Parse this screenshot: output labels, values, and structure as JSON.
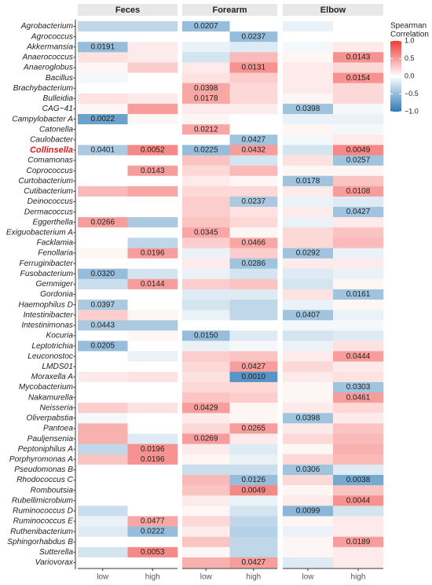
{
  "chart_data": {
    "type": "heatmap",
    "panels": [
      "Feces",
      "Forearm",
      "Elbow"
    ],
    "columns": [
      "low",
      "high"
    ],
    "rows": [
      "Agrobacterium",
      "Agrococcus",
      "Akkermansia",
      "Anaerococcus",
      "Anaeroglobus",
      "Bacillus",
      "Brachybacterium",
      "Bulleidia",
      "CAG−41",
      "Campylobacter A",
      "Catonella",
      "Caulobacter",
      "Collinsella",
      "Comamonas",
      "Coprococcus",
      "Curtobacterium",
      "Cutibacterium",
      "Deinococcus",
      "Dermacoccus",
      "Eggerthella",
      "Exiguobacterium A",
      "Facklamia",
      "Fenollaria",
      "Ferruginibacter",
      "Fusobacterium",
      "Gemmiger",
      "Gordonia",
      "Haemophilus D",
      "Intestinibacter",
      "Intestinimonas",
      "Kocuria",
      "Leptotrichia",
      "Leuconostoc",
      "LMDS01",
      "Moraxella A",
      "Mycobacterium",
      "Nakamurella",
      "Neisseria",
      "Oliverpabstia",
      "Pantoea",
      "Pauljensenia",
      "Peptoniphilus A",
      "Porphyromonas A",
      "Pseudomonas B",
      "Rhodococcus C",
      "Romboutsia",
      "Rubellimicrobium",
      "Ruminococcus D",
      "Ruminococcus E",
      "Ruthenibacterium",
      "Sphingorhabdus B",
      "Sutterella",
      "Variovorax"
    ],
    "highlight_row": 12,
    "highlight_color": "#e41a1c",
    "values": [
      [
        [
          -0.3,
          -0.3
        ],
        [
          0,
          0
        ],
        [
          -0.5,
          0.1
        ],
        [
          0.15,
          0.1
        ],
        [
          0.05,
          0.25
        ],
        [
          -0.05,
          0
        ],
        [
          0,
          0
        ],
        [
          0.15,
          0.1
        ],
        [
          0.05,
          0.5
        ],
        [
          -0.7,
          0.05
        ],
        [
          0,
          0
        ],
        [
          0,
          0
        ],
        [
          -0.4,
          0.6
        ],
        [
          0,
          0
        ],
        [
          0,
          0.5
        ],
        [
          0,
          0
        ],
        [
          0.35,
          0.45
        ],
        [
          0,
          0
        ],
        [
          0,
          0
        ],
        [
          0.5,
          -0.4
        ],
        [
          0,
          0
        ],
        [
          0,
          -0.3
        ],
        [
          0.05,
          0.5
        ],
        [
          0,
          0
        ],
        [
          -0.5,
          -0.2
        ],
        [
          -0.25,
          0.5
        ],
        [
          0,
          0
        ],
        [
          -0.4,
          0
        ],
        [
          0.25,
          0.05
        ],
        [
          -0.4,
          -0.4
        ],
        [
          0,
          0.05
        ],
        [
          -0.5,
          0
        ],
        [
          0,
          -0.1
        ],
        [
          0,
          0
        ],
        [
          0.1,
          0.15
        ],
        [
          0,
          0
        ],
        [
          0,
          0
        ],
        [
          0.25,
          0.15
        ],
        [
          -0.05,
          0
        ],
        [
          0.4,
          0
        ],
        [
          0.4,
          -0.15
        ],
        [
          -0.3,
          0.55
        ],
        [
          0.3,
          0.55
        ],
        [
          0,
          0
        ],
        [
          0,
          0
        ],
        [
          0,
          0
        ],
        [
          0,
          0
        ],
        [
          -0.25,
          0
        ],
        [
          -0.1,
          0.45
        ],
        [
          -0.15,
          -0.5
        ],
        [
          0,
          0
        ],
        [
          -0.2,
          0.6
        ],
        [
          0,
          0
        ]
      ],
      [
        [
          -0.5,
          0
        ],
        [
          0,
          -0.5
        ],
        [
          -0.1,
          -0.15
        ],
        [
          -0.2,
          0.35
        ],
        [
          0.1,
          0.55
        ],
        [
          0.15,
          0.25
        ],
        [
          0.45,
          0.2
        ],
        [
          0.45,
          0.2
        ],
        [
          0.1,
          0.1
        ],
        [
          0.05,
          0
        ],
        [
          0.45,
          0
        ],
        [
          0,
          -0.45
        ],
        [
          -0.5,
          0.5
        ],
        [
          0.3,
          -0.2
        ],
        [
          0.2,
          0.35
        ],
        [
          0.1,
          0.05
        ],
        [
          0.2,
          0.2
        ],
        [
          0.25,
          -0.4
        ],
        [
          0.25,
          0.15
        ],
        [
          0.3,
          0.2
        ],
        [
          0.45,
          0.05
        ],
        [
          0.25,
          0.45
        ],
        [
          -0.1,
          0.25
        ],
        [
          0.1,
          -0.45
        ],
        [
          -0.1,
          -0.2
        ],
        [
          0.25,
          0.3
        ],
        [
          -0.15,
          -0.15
        ],
        [
          -0.2,
          -0.3
        ],
        [
          -0.1,
          -0.3
        ],
        [
          0,
          0
        ],
        [
          -0.5,
          -0.15
        ],
        [
          -0.1,
          -0.05
        ],
        [
          0.25,
          0.3
        ],
        [
          0.2,
          0.5
        ],
        [
          0.15,
          -0.8
        ],
        [
          0.2,
          0.2
        ],
        [
          0.3,
          0.25
        ],
        [
          0.5,
          0.05
        ],
        [
          0.1,
          0.05
        ],
        [
          0.2,
          0.5
        ],
        [
          0.5,
          0.1
        ],
        [
          0.1,
          -0.15
        ],
        [
          0.05,
          -0.1
        ],
        [
          -0.25,
          -0.25
        ],
        [
          0.35,
          -0.5
        ],
        [
          0.3,
          0.6
        ],
        [
          0.1,
          -0.1
        ],
        [
          0.05,
          -0.2
        ],
        [
          0.2,
          -0.3
        ],
        [
          0.1,
          -0.35
        ],
        [
          0.3,
          -0.3
        ],
        [
          0.05,
          -0.3
        ],
        [
          0.4,
          0.5
        ]
      ],
      [
        [
          -0.1,
          0
        ],
        [
          0,
          0
        ],
        [
          -0.05,
          0.1
        ],
        [
          0.05,
          0.55
        ],
        [
          0.1,
          0.2
        ],
        [
          0.1,
          0.55
        ],
        [
          0.1,
          0.2
        ],
        [
          0.05,
          0.2
        ],
        [
          -0.45,
          -0.05
        ],
        [
          -0.1,
          -0.1
        ],
        [
          0.05,
          -0.05
        ],
        [
          -0.05,
          0.1
        ],
        [
          -0.2,
          0.6
        ],
        [
          0.15,
          -0.45
        ],
        [
          0.05,
          0.05
        ],
        [
          -0.45,
          0.3
        ],
        [
          0.1,
          0.5
        ],
        [
          -0.1,
          -0.15
        ],
        [
          0.1,
          -0.45
        ],
        [
          -0.1,
          0.1
        ],
        [
          0.2,
          0.3
        ],
        [
          0.2,
          0.35
        ],
        [
          -0.45,
          -0.1
        ],
        [
          0.1,
          0.1
        ],
        [
          -0.15,
          -0.1
        ],
        [
          -0.2,
          0.05
        ],
        [
          0.15,
          -0.45
        ],
        [
          -0.1,
          0.05
        ],
        [
          -0.45,
          -0.1
        ],
        [
          -0.05,
          -0.05
        ],
        [
          -0.2,
          -0.15
        ],
        [
          -0.1,
          0.15
        ],
        [
          0.1,
          0.5
        ],
        [
          0.2,
          0.1
        ],
        [
          0.1,
          0.15
        ],
        [
          0.05,
          -0.45
        ],
        [
          0.05,
          0.5
        ],
        [
          0.1,
          0.2
        ],
        [
          -0.45,
          0.1
        ],
        [
          0.1,
          0.3
        ],
        [
          0.2,
          0.35
        ],
        [
          0.05,
          0.4
        ],
        [
          0.2,
          0.35
        ],
        [
          -0.45,
          -0.15
        ],
        [
          0.2,
          -0.65
        ],
        [
          0.05,
          0.3
        ],
        [
          0.1,
          0.55
        ],
        [
          -0.55,
          -0.2
        ],
        [
          0.05,
          0.1
        ],
        [
          -0.1,
          0.1
        ],
        [
          0.05,
          0.5
        ],
        [
          0.05,
          0.1
        ],
        [
          -0.15,
          0.1
        ]
      ]
    ],
    "labels": [
      [
        [
          null,
          null
        ],
        [
          null,
          null
        ],
        [
          "0.0191",
          null
        ],
        [
          null,
          null
        ],
        [
          null,
          null
        ],
        [
          null,
          null
        ],
        [
          null,
          null
        ],
        [
          null,
          null
        ],
        [
          null,
          null
        ],
        [
          "0.0022",
          null
        ],
        [
          null,
          null
        ],
        [
          null,
          null
        ],
        [
          "0.0401",
          "0.0052"
        ],
        [
          null,
          null
        ],
        [
          null,
          "0.0143"
        ],
        [
          null,
          null
        ],
        [
          null,
          null
        ],
        [
          null,
          null
        ],
        [
          null,
          null
        ],
        [
          "0.0266",
          null
        ],
        [
          null,
          null
        ],
        [
          null,
          null
        ],
        [
          null,
          "0.0196"
        ],
        [
          null,
          null
        ],
        [
          "0.0320",
          null
        ],
        [
          null,
          "0.0144"
        ],
        [
          null,
          null
        ],
        [
          "0.0397",
          null
        ],
        [
          null,
          null
        ],
        [
          "0.0443",
          null
        ],
        [
          null,
          null
        ],
        [
          "0.0205",
          null
        ],
        [
          null,
          null
        ],
        [
          null,
          null
        ],
        [
          null,
          null
        ],
        [
          null,
          null
        ],
        [
          null,
          null
        ],
        [
          null,
          null
        ],
        [
          null,
          null
        ],
        [
          null,
          null
        ],
        [
          null,
          null
        ],
        [
          null,
          "0.0196"
        ],
        [
          null,
          "0.0196"
        ],
        [
          null,
          null
        ],
        [
          null,
          null
        ],
        [
          null,
          null
        ],
        [
          null,
          null
        ],
        [
          null,
          null
        ],
        [
          null,
          "0.0477"
        ],
        [
          null,
          "0.0222"
        ],
        [
          null,
          null
        ],
        [
          null,
          "0.0053"
        ],
        [
          null,
          null
        ]
      ],
      [
        [
          "0.0207",
          null
        ],
        [
          null,
          "0.0237"
        ],
        [
          null,
          null
        ],
        [
          null,
          null
        ],
        [
          null,
          "0.0131"
        ],
        [
          null,
          null
        ],
        [
          "0.0398",
          null
        ],
        [
          "0.0178",
          null
        ],
        [
          null,
          null
        ],
        [
          null,
          null
        ],
        [
          "0.0212",
          null
        ],
        [
          null,
          "0.0427"
        ],
        [
          "0.0225",
          "0.0432"
        ],
        [
          null,
          null
        ],
        [
          null,
          null
        ],
        [
          null,
          null
        ],
        [
          null,
          null
        ],
        [
          null,
          "0.0237"
        ],
        [
          null,
          null
        ],
        [
          null,
          null
        ],
        [
          "0.0345",
          null
        ],
        [
          null,
          "0.0466"
        ],
        [
          null,
          null
        ],
        [
          null,
          "0.0286"
        ],
        [
          null,
          null
        ],
        [
          null,
          null
        ],
        [
          null,
          null
        ],
        [
          null,
          null
        ],
        [
          null,
          null
        ],
        [
          null,
          null
        ],
        [
          "0.0150",
          null
        ],
        [
          null,
          null
        ],
        [
          null,
          null
        ],
        [
          null,
          "0.0427"
        ],
        [
          null,
          "0.0010"
        ],
        [
          null,
          null
        ],
        [
          null,
          null
        ],
        [
          "0.0429",
          null
        ],
        [
          null,
          null
        ],
        [
          null,
          "0.0265"
        ],
        [
          "0.0269",
          null
        ],
        [
          null,
          null
        ],
        [
          null,
          null
        ],
        [
          null,
          null
        ],
        [
          null,
          "0.0126"
        ],
        [
          null,
          "0.0049"
        ],
        [
          null,
          null
        ],
        [
          null,
          null
        ],
        [
          null,
          null
        ],
        [
          null,
          null
        ],
        [
          null,
          null
        ],
        [
          null,
          null
        ],
        [
          null,
          "0.0427"
        ]
      ],
      [
        [
          null,
          null
        ],
        [
          null,
          null
        ],
        [
          null,
          null
        ],
        [
          null,
          "0.0143"
        ],
        [
          null,
          null
        ],
        [
          null,
          "0.0154"
        ],
        [
          null,
          null
        ],
        [
          null,
          null
        ],
        [
          "0.0398",
          null
        ],
        [
          null,
          null
        ],
        [
          null,
          null
        ],
        [
          null,
          null
        ],
        [
          null,
          "0.0049"
        ],
        [
          null,
          "0.0257"
        ],
        [
          null,
          null
        ],
        [
          "0.0178",
          null
        ],
        [
          null,
          "0.0108"
        ],
        [
          null,
          null
        ],
        [
          null,
          "0.0427"
        ],
        [
          null,
          null
        ],
        [
          null,
          null
        ],
        [
          null,
          null
        ],
        [
          "0.0292",
          null
        ],
        [
          null,
          null
        ],
        [
          null,
          null
        ],
        [
          null,
          null
        ],
        [
          null,
          "0.0161"
        ],
        [
          null,
          null
        ],
        [
          "0.0407",
          null
        ],
        [
          null,
          null
        ],
        [
          null,
          null
        ],
        [
          null,
          null
        ],
        [
          null,
          "0.0444"
        ],
        [
          null,
          null
        ],
        [
          null,
          null
        ],
        [
          null,
          "0.0303"
        ],
        [
          null,
          "0.0461"
        ],
        [
          null,
          null
        ],
        [
          "0.0398",
          null
        ],
        [
          null,
          null
        ],
        [
          null,
          null
        ],
        [
          null,
          null
        ],
        [
          null,
          null
        ],
        [
          "0.0306",
          null
        ],
        [
          null,
          "0.0038"
        ],
        [
          null,
          null
        ],
        [
          null,
          "0.0044"
        ],
        [
          "0.0099",
          null
        ],
        [
          null,
          null
        ],
        [
          null,
          null
        ],
        [
          null,
          "0.0189"
        ],
        [
          null,
          null
        ],
        [
          null,
          null
        ]
      ]
    ],
    "legend_title": [
      "Spearman",
      "Correlation"
    ],
    "clim": [
      -1,
      1
    ],
    "cticks": [
      {
        "value": 1,
        "label": "1.0"
      },
      {
        "value": 0.5,
        "label": "0.5"
      },
      {
        "value": 0,
        "label": "0.0"
      },
      {
        "value": -0.5,
        "label": "−0.5"
      },
      {
        "value": -1,
        "label": "−1.0"
      }
    ],
    "colors": {
      "low": "#2c7bb6",
      "mid": "#ffffff",
      "high": "#ef3b36"
    }
  }
}
